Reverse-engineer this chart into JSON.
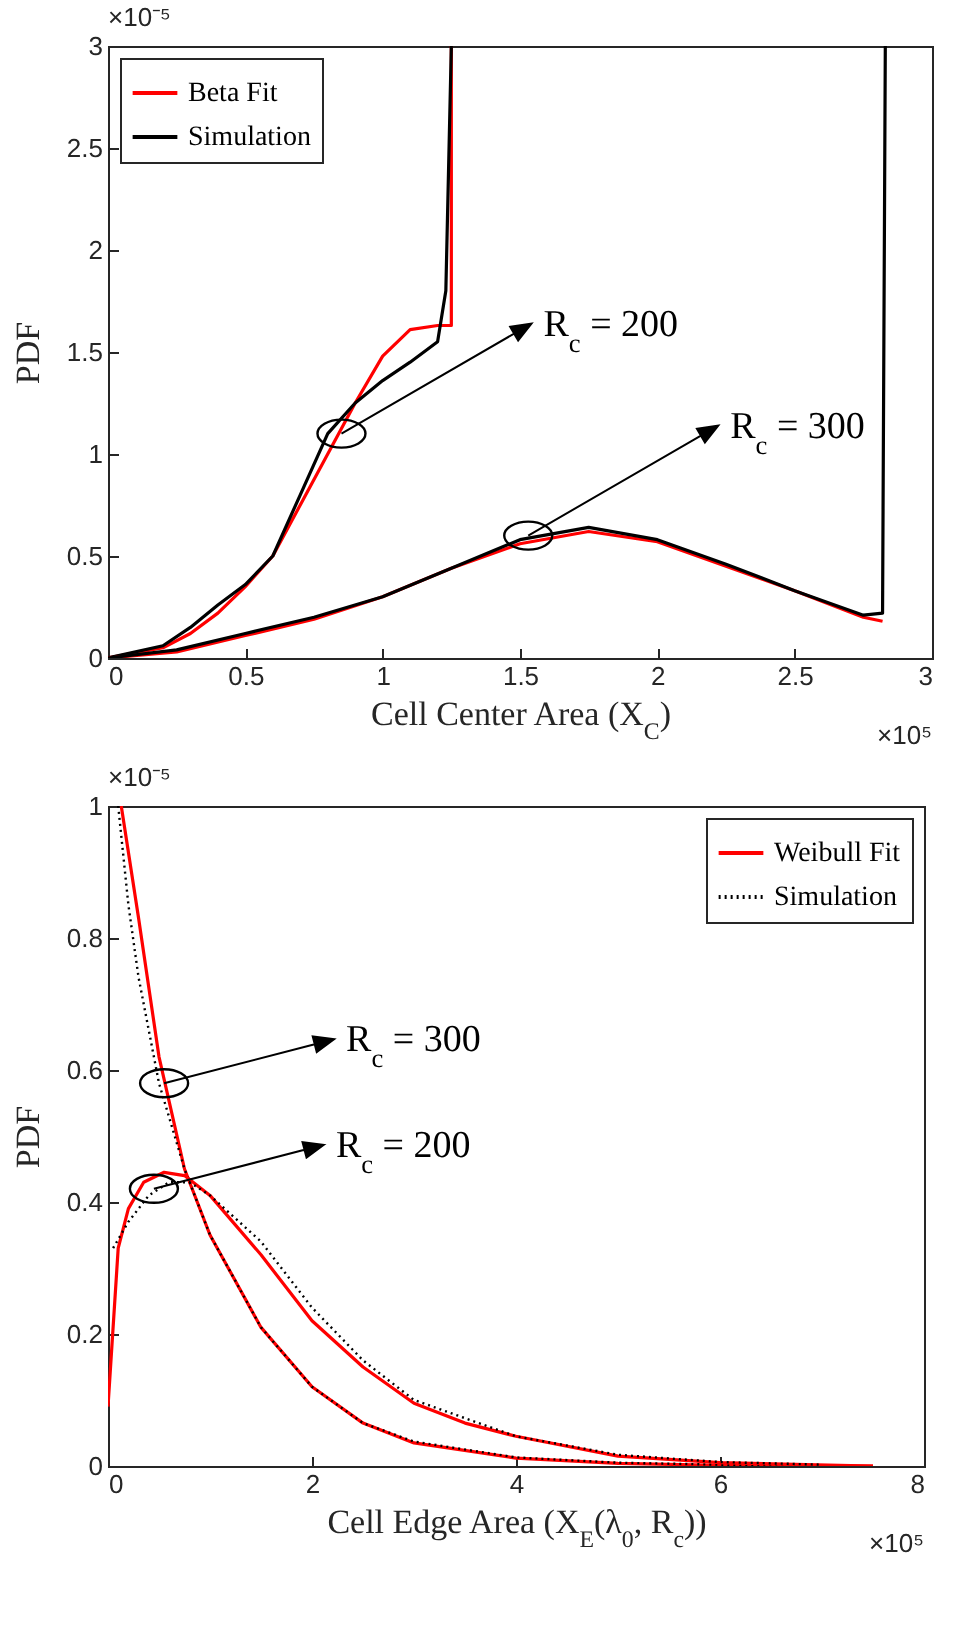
{
  "chart_data": [
    {
      "type": "line",
      "xlabel": "Cell Center Area (X$_{C}$)",
      "ylabel": "PDF",
      "xlim": [
        0,
        3
      ],
      "ylim": [
        0,
        3
      ],
      "xticks": [
        0,
        0.5,
        1,
        1.5,
        2,
        2.5,
        3
      ],
      "yticks": [
        0,
        0.5,
        1,
        1.5,
        2,
        2.5,
        3
      ],
      "legend": "top left",
      "annotations": [
        "×10⁻⁵",
        "×10⁵",
        {
          "text": "R$_{c}$ = 200",
          "x": 0.85,
          "y": 1.1
        },
        {
          "text": "R$_{c}$ = 300",
          "x": 1.53,
          "y": 0.6
        }
      ],
      "series": [
        {
          "name": "Beta Fit",
          "color": "#ff0000",
          "line_style": "solid",
          "x": [
            0,
            0.2,
            0.3,
            0.4,
            0.5,
            0.6,
            0.7,
            0.8,
            0.9,
            1.0,
            1.1,
            1.2,
            1.25,
            1.25
          ],
          "values": [
            0,
            0.05,
            0.12,
            0.22,
            0.35,
            0.5,
            0.75,
            1.0,
            1.25,
            1.48,
            1.61,
            1.63,
            1.63,
            3
          ]
        },
        {
          "name": "Simulation",
          "color": "#000000",
          "line_style": "solid",
          "x": [
            0,
            0.2,
            0.3,
            0.4,
            0.5,
            0.6,
            0.7,
            0.8,
            0.9,
            1.0,
            1.1,
            1.2,
            1.23,
            1.25
          ],
          "values": [
            0,
            0.06,
            0.15,
            0.26,
            0.36,
            0.5,
            0.8,
            1.1,
            1.25,
            1.36,
            1.45,
            1.55,
            1.8,
            3
          ]
        },
        {
          "color": "#ff0000",
          "line_style": "solid",
          "x": [
            0,
            0.25,
            0.5,
            0.75,
            1.0,
            1.25,
            1.5,
            1.75,
            2.0,
            2.25,
            2.5,
            2.75,
            2.82
          ],
          "values": [
            0,
            0.03,
            0.11,
            0.19,
            0.3,
            0.44,
            0.56,
            0.62,
            0.57,
            0.45,
            0.33,
            0.2,
            0.18
          ]
        },
        {
          "color": "#000000",
          "line_style": "solid",
          "x": [
            0,
            0.25,
            0.5,
            0.75,
            1.0,
            1.25,
            1.5,
            1.75,
            2.0,
            2.25,
            2.5,
            2.75,
            2.82,
            2.83
          ],
          "values": [
            0,
            0.04,
            0.12,
            0.2,
            0.3,
            0.44,
            0.58,
            0.64,
            0.58,
            0.46,
            0.33,
            0.21,
            0.22,
            3
          ]
        }
      ]
    },
    {
      "type": "line",
      "xlabel": "Cell Edge Area (X$_{E}$(λ$_{0}$, R$_{c}$))",
      "ylabel": "PDF",
      "xlim": [
        0,
        8
      ],
      "ylim": [
        0,
        1
      ],
      "xticks": [
        0,
        2,
        4,
        6,
        8
      ],
      "yticks": [
        0,
        0.2,
        0.4,
        0.6,
        0.8,
        1
      ],
      "legend": "top right",
      "annotations": [
        "×10⁻⁵",
        "×10⁵",
        {
          "text": "R$_{c}$ = 300",
          "x": 0.55,
          "y": 0.58
        },
        {
          "text": "R$_{c}$ = 200",
          "x": 0.45,
          "y": 0.42
        }
      ],
      "series": [
        {
          "name": "Weibull Fit",
          "color": "#ff0000",
          "line_style": "solid",
          "x": [
            0.13,
            0.3,
            0.5,
            0.75,
            1.0,
            1.5,
            2,
            2.5,
            3,
            4,
            5,
            6,
            7.5
          ],
          "values": [
            1,
            0.83,
            0.62,
            0.45,
            0.35,
            0.21,
            0.12,
            0.065,
            0.035,
            0.012,
            0.004,
            0.001,
            0
          ]
        },
        {
          "name": "Simulation",
          "color": "#000000",
          "line_style": "dotted",
          "x": [
            0.1,
            0.2,
            0.3,
            0.5,
            0.75,
            1,
            1.5,
            2,
            2.5,
            3,
            4,
            5,
            6,
            7
          ],
          "values": [
            1,
            0.85,
            0.74,
            0.58,
            0.45,
            0.35,
            0.21,
            0.12,
            0.065,
            0.037,
            0.013,
            0.005,
            0.002,
            0.001
          ]
        },
        {
          "color": "#ff0000",
          "line_style": "solid",
          "x": [
            0,
            0.1,
            0.2,
            0.35,
            0.55,
            0.75,
            1,
            1.5,
            2,
            2.5,
            3,
            3.5,
            4,
            5,
            6,
            7.5
          ],
          "values": [
            0.09,
            0.33,
            0.39,
            0.43,
            0.445,
            0.44,
            0.41,
            0.32,
            0.22,
            0.15,
            0.095,
            0.065,
            0.045,
            0.015,
            0.005,
            0
          ]
        },
        {
          "color": "#000000",
          "line_style": "dotted",
          "x": [
            0.05,
            0.2,
            0.4,
            0.6,
            0.8,
            1,
            1.5,
            2,
            2.5,
            3,
            4,
            5,
            6,
            7
          ],
          "values": [
            0.33,
            0.37,
            0.41,
            0.43,
            0.43,
            0.41,
            0.34,
            0.24,
            0.16,
            0.1,
            0.045,
            0.017,
            0.006,
            0.002
          ]
        }
      ]
    }
  ]
}
